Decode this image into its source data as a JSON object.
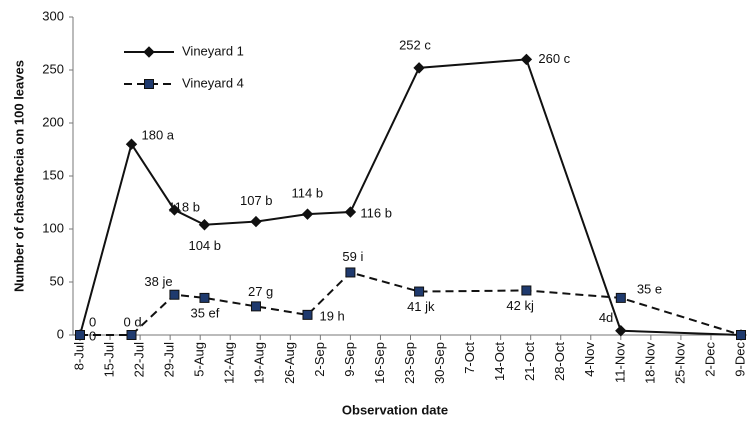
{
  "chart_data": {
    "type": "line",
    "y_label": "Number of chasothecia on 100 leaves",
    "x_label": "Observation date",
    "xlim": [
      0,
      154
    ],
    "xticks": [
      {
        "value": 0,
        "label": "8-Jul"
      },
      {
        "value": 7,
        "label": "15-Jul"
      },
      {
        "value": 14,
        "label": "22-Jul"
      },
      {
        "value": 21,
        "label": "29-Jul"
      },
      {
        "value": 28,
        "label": "5-Aug"
      },
      {
        "value": 35,
        "label": "12-Aug"
      },
      {
        "value": 42,
        "label": "19-Aug"
      },
      {
        "value": 49,
        "label": "26-Aug"
      },
      {
        "value": 56,
        "label": "2-Sep"
      },
      {
        "value": 63,
        "label": "9-Sep"
      },
      {
        "value": 70,
        "label": "16-Sep"
      },
      {
        "value": 77,
        "label": "23-Sep"
      },
      {
        "value": 84,
        "label": "30-Sep"
      },
      {
        "value": 91,
        "label": "7-Oct"
      },
      {
        "value": 98,
        "label": "14-Oct"
      },
      {
        "value": 105,
        "label": "21-Oct"
      },
      {
        "value": 112,
        "label": "28-Oct"
      },
      {
        "value": 119,
        "label": "4-Nov"
      },
      {
        "value": 126,
        "label": "11-Nov"
      },
      {
        "value": 133,
        "label": "18-Nov"
      },
      {
        "value": 140,
        "label": "25-Nov"
      },
      {
        "value": 147,
        "label": "2-Dec"
      },
      {
        "value": 154,
        "label": "9-Dec"
      }
    ],
    "ylim": [
      0,
      300
    ],
    "yticks": [
      0,
      50,
      100,
      150,
      200,
      250,
      300
    ],
    "legend": "upper left",
    "x": [
      0,
      12,
      22,
      29,
      41,
      53,
      63,
      79,
      104,
      126,
      154
    ],
    "series": [
      {
        "name": "Vineyard 1",
        "color": "#111111",
        "marker": "diamond",
        "dash": false,
        "values": [
          0,
          180,
          118,
          104,
          107,
          114,
          116,
          252,
          260,
          4,
          0
        ],
        "value_labels": [
          "0",
          "180 a",
          "118 b",
          "104 b",
          "107 b",
          "114 b",
          "116 b",
          "252 c",
          "260 c",
          "4d",
          null
        ]
      },
      {
        "name": "Vineyard 4",
        "color": "#1f3a6e",
        "marker": "square",
        "dash": true,
        "values": [
          0,
          0,
          38,
          35,
          27,
          19,
          59,
          41,
          42,
          35,
          0
        ],
        "value_labels": [
          "0",
          "0 d",
          "38 je",
          "35 ef",
          "27 g",
          "19 h",
          "59 i",
          "41 jk",
          "42 kj",
          "35 e",
          null
        ]
      }
    ]
  }
}
